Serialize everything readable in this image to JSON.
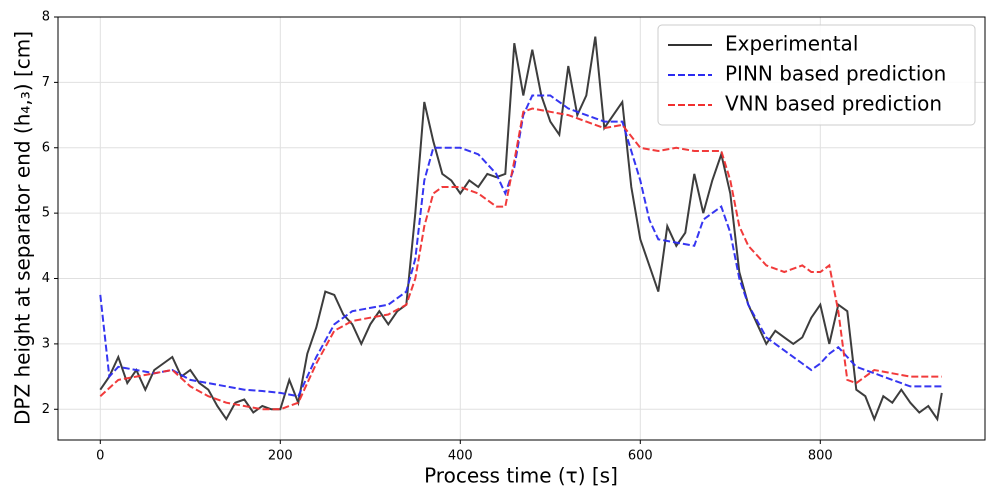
{
  "chart_data": {
    "type": "line",
    "x_label": "Process time (τ) [s]",
    "y_label": "DPZ height at separator end (h₄,₃) [cm]",
    "xlim": [
      -47,
      983
    ],
    "ylim": [
      1.53,
      8
    ],
    "xticks": [
      0,
      200,
      400,
      600,
      800
    ],
    "yticks": [
      2,
      3,
      4,
      5,
      6,
      7,
      8
    ],
    "grid": true,
    "legend": "upper right",
    "series": [
      {
        "name": "Experimental",
        "color": "#333333",
        "dash": "solid",
        "x": [
          0,
          10,
          20,
          30,
          40,
          50,
          60,
          70,
          80,
          90,
          100,
          110,
          120,
          130,
          140,
          150,
          160,
          170,
          180,
          190,
          200,
          210,
          220,
          230,
          240,
          250,
          260,
          270,
          280,
          290,
          300,
          310,
          320,
          330,
          340,
          350,
          360,
          370,
          380,
          390,
          400,
          410,
          420,
          430,
          440,
          450,
          460,
          470,
          480,
          490,
          500,
          510,
          520,
          530,
          540,
          550,
          560,
          570,
          580,
          590,
          600,
          610,
          620,
          630,
          640,
          650,
          660,
          670,
          680,
          690,
          700,
          710,
          720,
          730,
          740,
          750,
          760,
          770,
          780,
          790,
          800,
          810,
          820,
          830,
          840,
          850,
          860,
          870,
          880,
          890,
          900,
          910,
          920,
          930,
          935
        ],
        "values": [
          2.3,
          2.5,
          2.8,
          2.4,
          2.6,
          2.3,
          2.6,
          2.7,
          2.8,
          2.5,
          2.6,
          2.4,
          2.3,
          2.05,
          1.85,
          2.1,
          2.15,
          1.95,
          2.05,
          2.0,
          2.0,
          2.45,
          2.1,
          2.85,
          3.25,
          3.8,
          3.75,
          3.45,
          3.3,
          3.0,
          3.3,
          3.5,
          3.3,
          3.5,
          3.6,
          5.0,
          6.7,
          6.1,
          5.6,
          5.5,
          5.3,
          5.5,
          5.4,
          5.6,
          5.55,
          5.6,
          7.6,
          6.8,
          7.5,
          6.8,
          6.4,
          6.2,
          7.25,
          6.5,
          6.8,
          7.7,
          6.3,
          6.5,
          6.7,
          5.4,
          4.6,
          4.2,
          3.8,
          4.8,
          4.5,
          4.7,
          5.6,
          5.0,
          5.5,
          5.9,
          5.3,
          4.1,
          3.6,
          3.3,
          3.0,
          3.2,
          3.1,
          3.0,
          3.1,
          3.4,
          3.6,
          3.0,
          3.6,
          3.5,
          2.3,
          2.2,
          1.85,
          2.2,
          2.1,
          2.3,
          2.1,
          1.95,
          2.05,
          1.85,
          2.25
        ]
      },
      {
        "name": "PINN based prediction",
        "color": "#2b2bf0",
        "dash": "dashed",
        "x": [
          0,
          10,
          20,
          40,
          60,
          80,
          100,
          120,
          140,
          160,
          180,
          200,
          220,
          240,
          260,
          280,
          300,
          320,
          340,
          350,
          360,
          370,
          380,
          400,
          420,
          440,
          450,
          460,
          470,
          480,
          500,
          520,
          540,
          560,
          580,
          600,
          610,
          620,
          640,
          660,
          670,
          680,
          690,
          700,
          710,
          720,
          740,
          760,
          780,
          790,
          800,
          810,
          820,
          830,
          840,
          860,
          880,
          900,
          920,
          935
        ],
        "values": [
          3.75,
          2.5,
          2.65,
          2.6,
          2.55,
          2.6,
          2.45,
          2.4,
          2.35,
          2.3,
          2.28,
          2.25,
          2.2,
          2.8,
          3.3,
          3.5,
          3.55,
          3.6,
          3.8,
          4.3,
          5.5,
          6.0,
          6.0,
          6.0,
          5.9,
          5.6,
          5.3,
          5.7,
          6.5,
          6.8,
          6.8,
          6.6,
          6.5,
          6.4,
          6.4,
          5.5,
          4.9,
          4.6,
          4.55,
          4.5,
          4.9,
          5.0,
          5.1,
          4.7,
          4.0,
          3.6,
          3.1,
          2.9,
          2.7,
          2.6,
          2.7,
          2.85,
          2.95,
          2.8,
          2.65,
          2.55,
          2.45,
          2.35,
          2.35,
          2.35
        ]
      },
      {
        "name": "VNN based prediction",
        "color": "#f03030",
        "dash": "dashed",
        "x": [
          0,
          20,
          40,
          60,
          80,
          100,
          120,
          140,
          160,
          180,
          200,
          220,
          240,
          260,
          280,
          300,
          320,
          340,
          350,
          360,
          370,
          380,
          400,
          420,
          440,
          450,
          460,
          470,
          480,
          500,
          520,
          540,
          560,
          580,
          600,
          620,
          640,
          660,
          680,
          690,
          700,
          710,
          720,
          740,
          760,
          780,
          790,
          800,
          810,
          820,
          830,
          840,
          860,
          880,
          900,
          935
        ],
        "values": [
          2.2,
          2.45,
          2.5,
          2.55,
          2.6,
          2.35,
          2.2,
          2.1,
          2.05,
          2.0,
          2.0,
          2.1,
          2.7,
          3.2,
          3.35,
          3.4,
          3.45,
          3.6,
          4.0,
          4.8,
          5.3,
          5.4,
          5.4,
          5.3,
          5.1,
          5.1,
          5.8,
          6.55,
          6.6,
          6.55,
          6.5,
          6.4,
          6.3,
          6.35,
          6.0,
          5.95,
          6.0,
          5.95,
          5.95,
          5.95,
          5.5,
          4.8,
          4.5,
          4.2,
          4.1,
          4.2,
          4.1,
          4.1,
          4.2,
          3.5,
          2.45,
          2.4,
          2.6,
          2.55,
          2.5,
          2.5
        ]
      }
    ]
  }
}
